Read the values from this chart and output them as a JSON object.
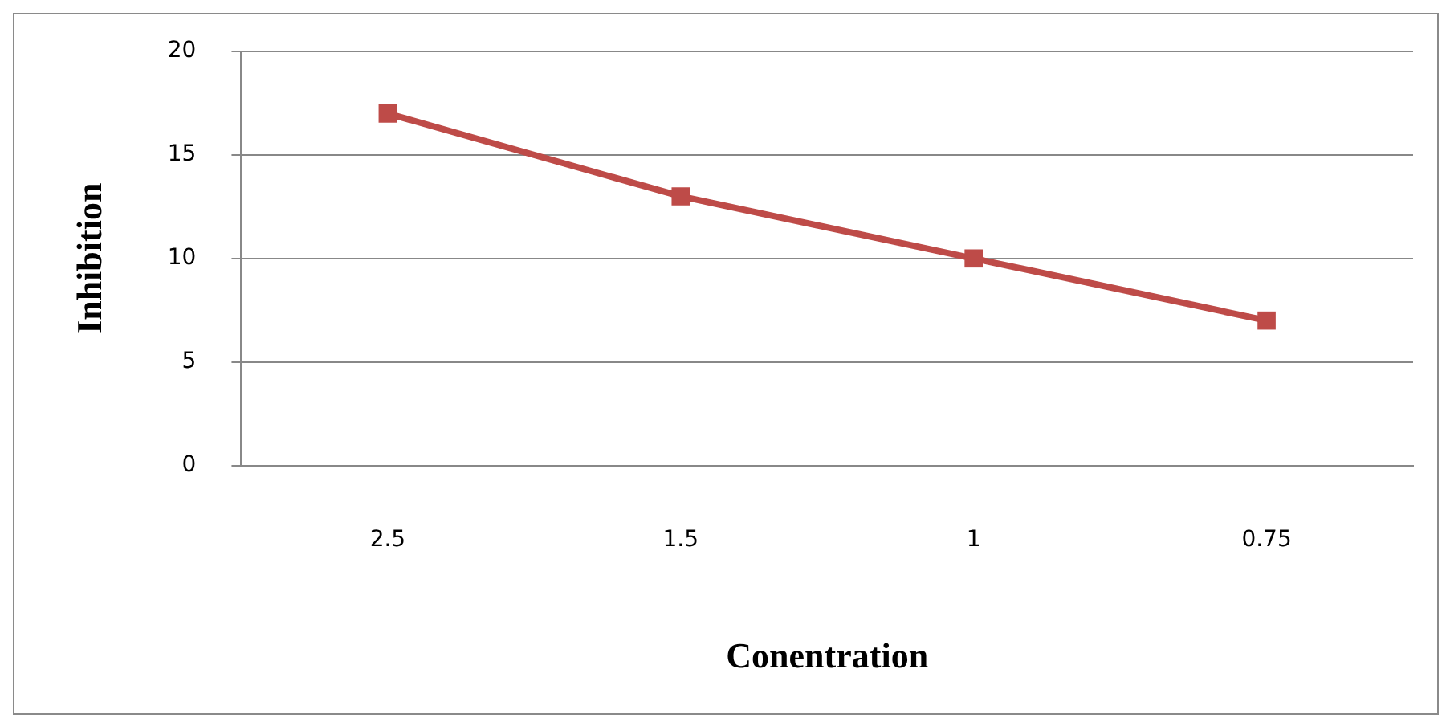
{
  "chart_data": {
    "type": "line",
    "xlabel": "Conentration",
    "ylabel": "Inhibition",
    "categories": [
      "2.5",
      "1.5",
      "1",
      "0.75"
    ],
    "series": [
      {
        "color": "#be4b48",
        "values": [
          17,
          13,
          10,
          7
        ]
      }
    ],
    "ylim": [
      0,
      20
    ],
    "yticks": [
      0,
      5,
      10,
      15,
      20
    ],
    "grid": "y",
    "legend": false,
    "marker": "square",
    "line_style": "solid"
  }
}
